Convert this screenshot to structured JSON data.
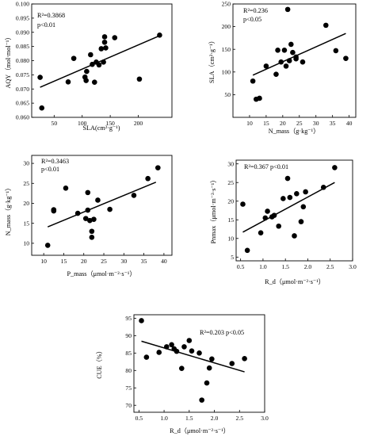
{
  "charts": [
    {
      "panel": "sla-vs-aqy",
      "chart_data": {
        "type": "scatter",
        "stats": [
          "R²=0.3868",
          "p<0.01"
        ],
        "xlabel": "SLA(cm²·g⁻¹)",
        "ylabel": "AQY（mol·mol⁻¹）",
        "xlim": [
          10,
          260
        ],
        "ylim": [
          0.06,
          0.1
        ],
        "x_ticks": [
          50,
          100,
          150,
          200
        ],
        "y_ticks": [
          "0.060",
          "0.065",
          "0.070",
          "0.075",
          "0.080",
          "0.085",
          "0.090",
          "0.095",
          "0.100"
        ],
        "points": [
          [
            25,
            0.0741
          ],
          [
            28,
            0.0633
          ],
          [
            75,
            0.0725
          ],
          [
            85,
            0.0808
          ],
          [
            105,
            0.0742
          ],
          [
            107,
            0.073
          ],
          [
            108,
            0.0762
          ],
          [
            115,
            0.0821
          ],
          [
            118,
            0.0787
          ],
          [
            122,
            0.0724
          ],
          [
            125,
            0.0795
          ],
          [
            130,
            0.0785
          ],
          [
            134,
            0.0842
          ],
          [
            138,
            0.0795
          ],
          [
            140,
            0.0865
          ],
          [
            140,
            0.0884
          ],
          [
            142,
            0.0845
          ],
          [
            158,
            0.0881
          ],
          [
            202,
            0.0735
          ],
          [
            238,
            0.089
          ]
        ],
        "trend": [
          [
            25,
            0.0706
          ],
          [
            238,
            0.0888
          ]
        ],
        "grid": false
      }
    },
    {
      "panel": "nmass-vs-sla",
      "chart_data": {
        "type": "scatter",
        "stats": [
          "R²=0.236",
          "p<0.05"
        ],
        "xlabel": "N_mass（g·kg⁻¹）",
        "ylabel": "SLA（cm²·g⁻¹）",
        "xlim": [
          5,
          42
        ],
        "ylim": [
          0,
          250
        ],
        "x_ticks": [
          10,
          15,
          20,
          25,
          30,
          35,
          40
        ],
        "y_ticks": [
          50,
          100,
          150,
          200,
          250
        ],
        "points": [
          [
            11,
            80
          ],
          [
            12,
            40
          ],
          [
            13,
            42
          ],
          [
            15,
            113
          ],
          [
            18,
            95
          ],
          [
            18.5,
            148
          ],
          [
            19.5,
            122
          ],
          [
            20.5,
            148
          ],
          [
            21,
            113
          ],
          [
            21.5,
            238
          ],
          [
            22,
            125
          ],
          [
            22.5,
            161
          ],
          [
            23,
            143
          ],
          [
            24,
            129
          ],
          [
            24,
            133
          ],
          [
            26,
            122
          ],
          [
            33,
            203
          ],
          [
            36,
            147
          ],
          [
            39,
            130
          ]
        ],
        "trend": [
          [
            11,
            93
          ],
          [
            39,
            185
          ]
        ],
        "grid": false
      }
    },
    {
      "panel": "pmass-vs-nmass",
      "chart_data": {
        "type": "scatter",
        "stats": [
          "R²=0.3463",
          "p<0.01"
        ],
        "xlabel": "P_mass（μmol·m⁻²·s⁻¹）",
        "ylabel": "N_mass（g·kg⁻¹）",
        "xlim": [
          7,
          42
        ],
        "ylim": [
          7,
          32
        ],
        "x_ticks": [
          10,
          15,
          20,
          25,
          30,
          35,
          40
        ],
        "y_ticks": [
          10,
          15,
          20,
          25,
          30
        ],
        "points": [
          [
            11,
            9.5
          ],
          [
            12.5,
            18.1
          ],
          [
            12.5,
            18.4
          ],
          [
            15.5,
            23.8
          ],
          [
            18.5,
            17.5
          ],
          [
            20.5,
            16.2
          ],
          [
            21,
            22.7
          ],
          [
            21,
            18.3
          ],
          [
            21.5,
            15.7
          ],
          [
            22,
            11.5
          ],
          [
            22,
            13
          ],
          [
            22.5,
            16
          ],
          [
            23.5,
            20.8
          ],
          [
            26.5,
            18.5
          ],
          [
            32.5,
            22
          ],
          [
            36,
            26.2
          ],
          [
            38.5,
            28.9
          ]
        ],
        "trend": [
          [
            11,
            14.1
          ],
          [
            38,
            25.3
          ]
        ],
        "grid": false
      }
    },
    {
      "panel": "rd-vs-pnmax",
      "chart_data": {
        "type": "scatter",
        "stats": [
          "R²=0.367 p<0.01"
        ],
        "xlabel": "R_d（μmol·m⁻²·s⁻¹）",
        "ylabel": "Pnmax（μmol·m⁻²·s⁻¹）",
        "xlim": [
          0.4,
          3.0
        ],
        "ylim": [
          4,
          31
        ],
        "x_ticks": [
          "0.5",
          "1.0",
          "1.5",
          "2.0",
          "2.5",
          "3.0"
        ],
        "y_ticks": [
          5,
          10,
          15,
          20,
          25,
          30
        ],
        "points": [
          [
            0.55,
            19.2
          ],
          [
            0.65,
            6.8
          ],
          [
            0.95,
            11.5
          ],
          [
            1.05,
            15.5
          ],
          [
            1.1,
            17.3
          ],
          [
            1.2,
            15.8
          ],
          [
            1.25,
            16.2
          ],
          [
            1.35,
            13.3
          ],
          [
            1.45,
            20.7
          ],
          [
            1.55,
            26.1
          ],
          [
            1.6,
            21
          ],
          [
            1.7,
            10.7
          ],
          [
            1.75,
            22
          ],
          [
            1.85,
            14.5
          ],
          [
            1.9,
            18.5
          ],
          [
            1.95,
            22.5
          ],
          [
            2.35,
            23.7
          ],
          [
            2.6,
            29
          ]
        ],
        "trend": [
          [
            0.55,
            11.7
          ],
          [
            2.6,
            25
          ]
        ],
        "grid": false
      }
    },
    {
      "panel": "rd-vs-cue",
      "chart_data": {
        "type": "scatter",
        "stats": [
          "R²=0.203 p<0.05"
        ],
        "xlabel": "R_d（μmol·m⁻²·s⁻¹）",
        "ylabel": "CUE（%）",
        "xlim": [
          0.4,
          3.0
        ],
        "ylim": [
          68,
          96
        ],
        "x_ticks": [
          "0.5",
          "1.0",
          "1.5",
          "2.0",
          "2.5",
          "3.0"
        ],
        "y_ticks": [
          70,
          75,
          80,
          85,
          90,
          95
        ],
        "points": [
          [
            0.55,
            94.3
          ],
          [
            0.65,
            83.8
          ],
          [
            0.9,
            85.2
          ],
          [
            1.05,
            86.8
          ],
          [
            1.15,
            87.4
          ],
          [
            1.2,
            86.2
          ],
          [
            1.25,
            85.5
          ],
          [
            1.35,
            80.6
          ],
          [
            1.4,
            86.8
          ],
          [
            1.5,
            88.6
          ],
          [
            1.55,
            85.6
          ],
          [
            1.7,
            85
          ],
          [
            1.75,
            71.5
          ],
          [
            1.85,
            76.4
          ],
          [
            1.9,
            80.7
          ],
          [
            1.95,
            83.3
          ],
          [
            2.35,
            82
          ],
          [
            2.6,
            83.4
          ]
        ],
        "trend": [
          [
            0.55,
            88.4
          ],
          [
            2.6,
            79.6
          ]
        ],
        "grid": false
      }
    }
  ]
}
